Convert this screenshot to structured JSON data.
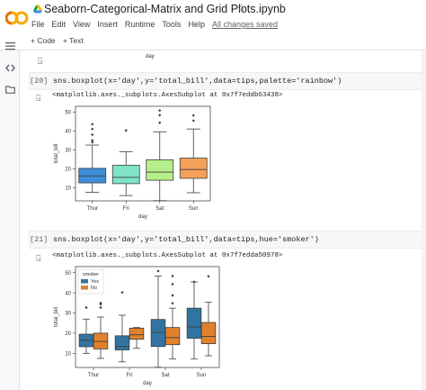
{
  "app": {
    "logo_text": "CO",
    "title": "Seaborn-Categorical-Matrix and Grid Plots.ipynb",
    "star_icon": "star-outline-icon",
    "drive_icon": "google-drive-icon"
  },
  "menu": {
    "items": [
      "File",
      "Edit",
      "View",
      "Insert",
      "Runtime",
      "Tools",
      "Help"
    ],
    "saved": "All changes saved"
  },
  "toolbar": {
    "add_code": "+ Code",
    "add_text": "+ Text"
  },
  "rail": {
    "icons": [
      "toc-icon",
      "code-brackets-icon",
      "folder-icon"
    ]
  },
  "prev_output": {
    "x_label": "day"
  },
  "cells": [
    {
      "exec_count": "[20]",
      "code": "sns.boxplot(x='day',y='total_bill',data=tips,palette='rainbow')",
      "output": "<matplotlib.axes._subplots.AxesSubplot at 0x7f7eddb63438>"
    },
    {
      "exec_count": "[21]",
      "code": "sns.boxplot(x='day',y='total_bill',data=tips,hue='smoker')",
      "output": "<matplotlib.axes._subplots.AxesSubplot at 0x7f7edda50978>"
    }
  ],
  "chart_data": [
    {
      "type": "box",
      "xlabel": "day",
      "ylabel": "total_bill",
      "ylim": [
        3,
        53
      ],
      "yticks": [
        10,
        20,
        30,
        40,
        50
      ],
      "categories": [
        "Thur",
        "Fri",
        "Sat",
        "Sun"
      ],
      "boxes": [
        {
          "category": "Thur",
          "color": "#3d8fd9",
          "whislo": 7.5,
          "q1": 12.5,
          "med": 16.2,
          "q3": 20.2,
          "whishi": 32.5,
          "fliers": [
            34,
            35,
            38,
            41,
            43.5
          ]
        },
        {
          "category": "Fri",
          "color": "#7fe3c9",
          "whislo": 5.8,
          "q1": 12.1,
          "med": 15.4,
          "q3": 21.8,
          "whishi": 28.9,
          "fliers": [
            40.2
          ]
        },
        {
          "category": "Sat",
          "color": "#b6ef8a",
          "whislo": 3.1,
          "q1": 13.9,
          "med": 18.2,
          "q3": 24.7,
          "whishi": 39.5,
          "fliers": [
            44.3,
            48.3,
            50.8
          ]
        },
        {
          "category": "Sun",
          "color": "#f5a05a",
          "whislo": 7.3,
          "q1": 14.9,
          "med": 19.6,
          "q3": 25.6,
          "whishi": 41,
          "fliers": [
            45.4,
            48.2
          ]
        }
      ]
    },
    {
      "type": "box",
      "xlabel": "day",
      "ylabel": "total_bill",
      "ylim": [
        3,
        53
      ],
      "yticks": [
        10,
        20,
        30,
        40,
        50
      ],
      "categories": [
        "Thur",
        "Fri",
        "Sat",
        "Sun"
      ],
      "legend": {
        "title": "smoker",
        "entries": [
          {
            "label": "Yes",
            "color": "#3274a1"
          },
          {
            "label": "No",
            "color": "#e1812c"
          }
        ],
        "placement": "top-left"
      },
      "groups": [
        {
          "category": "Thur",
          "boxes": [
            {
              "hue": "Yes",
              "whislo": 10,
              "q1": 13.3,
              "med": 16.5,
              "q3": 19.5,
              "whishi": 27,
              "fliers": [
                32.7,
                43
              ]
            },
            {
              "hue": "No",
              "whislo": 7.5,
              "q1": 12.2,
              "med": 15.9,
              "q3": 20.0,
              "whishi": 28,
              "fliers": [
                32.7,
                34.3,
                35,
                41
              ]
            }
          ]
        },
        {
          "category": "Fri",
          "boxes": [
            {
              "hue": "Yes",
              "whislo": 5.8,
              "q1": 11.7,
              "med": 13.4,
              "q3": 18.7,
              "whishi": 28.9,
              "fliers": [
                40.2
              ]
            },
            {
              "hue": "No",
              "whislo": 12.5,
              "q1": 17.0,
              "med": 19.2,
              "q3": 22.5,
              "whishi": 22.8,
              "fliers": []
            }
          ]
        },
        {
          "category": "Sat",
          "boxes": [
            {
              "hue": "Yes",
              "whislo": 3.1,
              "q1": 13.4,
              "med": 20.4,
              "q3": 26.8,
              "whishi": 48.3,
              "fliers": [
                50.8
              ]
            },
            {
              "hue": "No",
              "whislo": 7.3,
              "q1": 14.3,
              "med": 17.8,
              "q3": 22.8,
              "whishi": 32.4,
              "fliers": [
                34.8,
                38.7,
                44.3,
                48.3
              ]
            }
          ]
        },
        {
          "category": "Sun",
          "boxes": [
            {
              "hue": "Yes",
              "whislo": 7.3,
              "q1": 17.5,
              "med": 23.1,
              "q3": 32.4,
              "whishi": 45.4,
              "fliers": [
                45.4
              ]
            },
            {
              "hue": "No",
              "whislo": 8.8,
              "q1": 14.8,
              "med": 18.4,
              "q3": 25.3,
              "whishi": 35.3,
              "fliers": [
                48.2
              ]
            }
          ]
        }
      ]
    }
  ]
}
